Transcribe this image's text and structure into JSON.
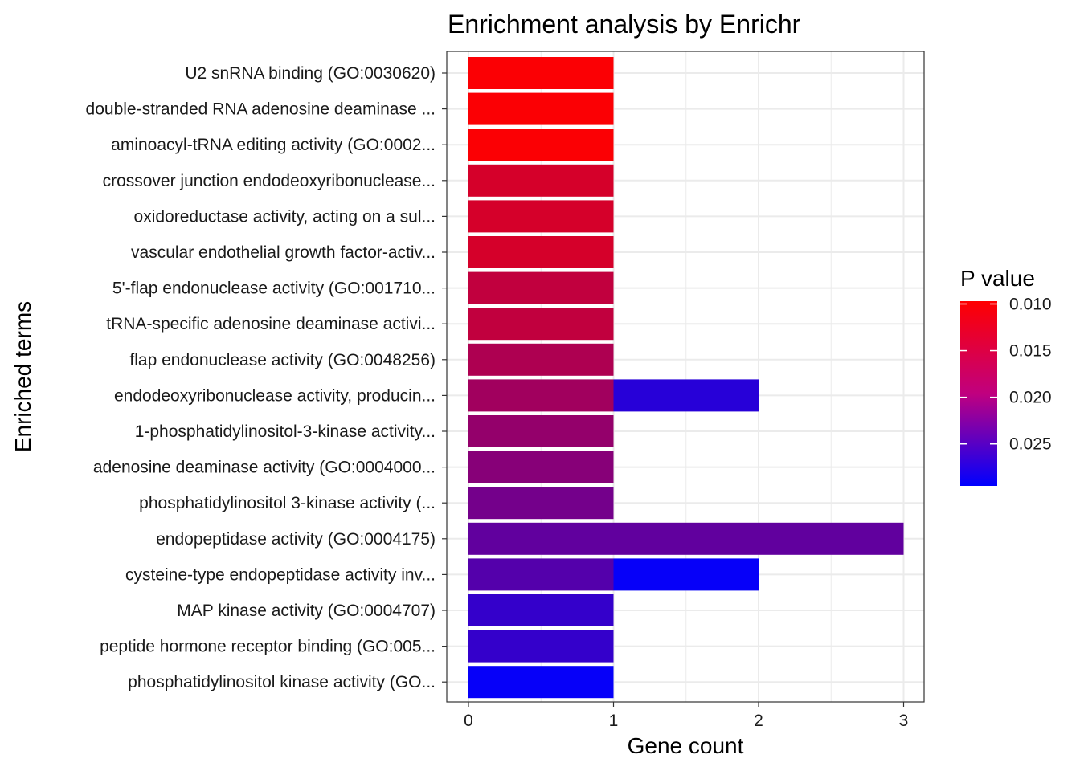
{
  "chart_data": {
    "type": "bar",
    "orientation": "horizontal",
    "stacked": true,
    "title": "Enrichment analysis by Enrichr",
    "xlabel": "Gene count",
    "ylabel": "Enriched terms",
    "xlim": [
      0,
      3
    ],
    "x_ticks": [
      "0",
      "1",
      "2",
      "3"
    ],
    "grid": true,
    "categories": [
      "U2 snRNA binding (GO:0030620)",
      "double-stranded RNA adenosine deaminase ...",
      "aminoacyl-tRNA editing activity (GO:0002...",
      "crossover junction endodeoxyribonuclease...",
      "oxidoreductase activity, acting on a sul...",
      "vascular endothelial growth factor-activ...",
      "5'-flap endonuclease activity (GO:001710...",
      "tRNA-specific adenosine deaminase activi...",
      "flap endonuclease activity (GO:0048256)",
      "endodeoxyribonuclease activity, producin...",
      "1-phosphatidylinositol-3-kinase activity...",
      "adenosine deaminase activity (GO:0004000...",
      "phosphatidylinositol 3-kinase activity (...",
      "endopeptidase activity (GO:0004175)",
      "cysteine-type endopeptidase activity inv...",
      "MAP kinase activity (GO:0004707)",
      "peptide hormone receptor binding (GO:005...",
      "phosphatidylinositol kinase activity (GO..."
    ],
    "segments": [
      [
        {
          "count": 1,
          "p": 0.01
        }
      ],
      [
        {
          "count": 1,
          "p": 0.01
        }
      ],
      [
        {
          "count": 1,
          "p": 0.01
        }
      ],
      [
        {
          "count": 1,
          "p": 0.013
        }
      ],
      [
        {
          "count": 1,
          "p": 0.013
        }
      ],
      [
        {
          "count": 1,
          "p": 0.013
        }
      ],
      [
        {
          "count": 1,
          "p": 0.0145
        }
      ],
      [
        {
          "count": 1,
          "p": 0.0145
        }
      ],
      [
        {
          "count": 1,
          "p": 0.016
        }
      ],
      [
        {
          "count": 1,
          "p": 0.017
        },
        {
          "count": 1,
          "p": 0.0265
        }
      ],
      [
        {
          "count": 1,
          "p": 0.018
        }
      ],
      [
        {
          "count": 1,
          "p": 0.019
        }
      ],
      [
        {
          "count": 1,
          "p": 0.0205
        }
      ],
      [
        {
          "count": 3,
          "p": 0.022
        }
      ],
      [
        {
          "count": 1,
          "p": 0.023
        },
        {
          "count": 1,
          "p": 0.029
        }
      ],
      [
        {
          "count": 1,
          "p": 0.0255
        }
      ],
      [
        {
          "count": 1,
          "p": 0.0255
        }
      ],
      [
        {
          "count": 1,
          "p": 0.029
        }
      ]
    ],
    "legend": {
      "title": "P value",
      "position": "right",
      "ticks": [
        "0.010",
        "0.015",
        "0.020",
        "0.025"
      ],
      "tick_values": [
        0.01,
        0.015,
        0.02,
        0.025
      ],
      "range": [
        0.0295,
        0.0097
      ],
      "low_color": "#FF0000",
      "high_color": "#0000FF"
    }
  }
}
